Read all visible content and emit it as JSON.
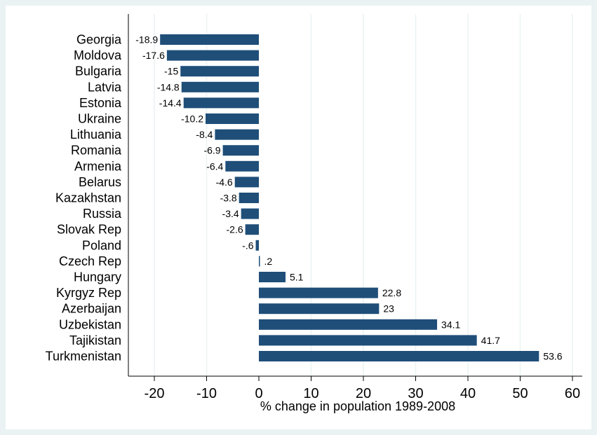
{
  "chart_data": {
    "type": "bar",
    "orientation": "horizontal",
    "xlabel": "% change in population 1989-2008",
    "ylabel": "",
    "xlim": [
      -25,
      62
    ],
    "xticks": [
      -20,
      -10,
      0,
      10,
      20,
      30,
      40,
      50,
      60
    ],
    "grid": true,
    "colors": {
      "bar": "#1f4e79",
      "background": "#eaf2f3",
      "plot": "#ffffff",
      "grid": "#eaf2f3"
    },
    "categories": [
      "Georgia",
      "Moldova",
      "Bulgaria",
      "Latvia",
      "Estonia",
      "Ukraine",
      "Lithuania",
      "Romania",
      "Armenia",
      "Belarus",
      "Kazakhstan",
      "Russia",
      "Slovak Rep",
      "Poland",
      "Czech Rep",
      "Hungary",
      "Kyrgyz Rep",
      "Azerbaijan",
      "Uzbekistan",
      "Tajikistan",
      "Turkmenistan"
    ],
    "values": [
      -18.9,
      -17.6,
      -15,
      -14.8,
      -14.4,
      -10.2,
      -8.4,
      -6.9,
      -6.4,
      -4.6,
      -3.8,
      -3.4,
      -2.6,
      -0.6,
      0.2,
      5.1,
      22.8,
      23,
      34.1,
      41.7,
      53.6
    ],
    "value_labels": [
      "-18.9",
      "-17.6",
      "-15",
      "-14.8",
      "-14.4",
      "-10.2",
      "-8.4",
      "-6.9",
      "-6.4",
      "-4.6",
      "-3.8",
      "-3.4",
      "-2.6",
      "-.6",
      ".2",
      "5.1",
      "22.8",
      "23",
      "34.1",
      "41.7",
      "53.6"
    ]
  }
}
